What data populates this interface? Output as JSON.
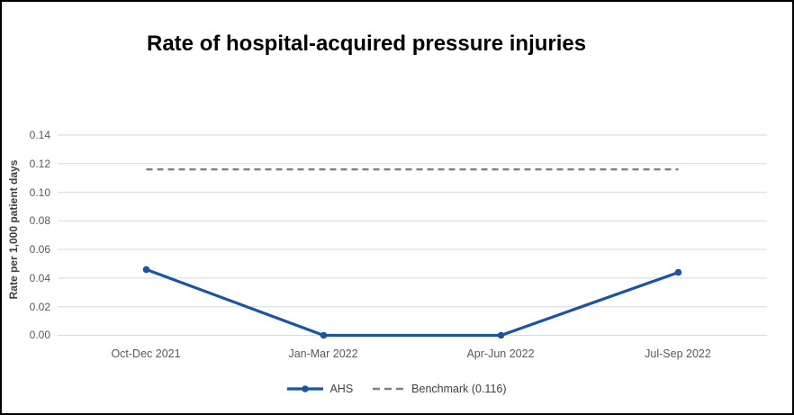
{
  "frame": {
    "background": "#ffffff",
    "border_color": "#000000"
  },
  "chart_data": {
    "type": "line",
    "title": "Rate of hospital-acquired pressure injuries",
    "xlabel": "",
    "ylabel": "Rate per 1,000 patient days",
    "categories": [
      "Oct-Dec 2021",
      "Jan-Mar 2022",
      "Apr-Jun 2022",
      "Jul-Sep 2022"
    ],
    "series": [
      {
        "name": "AHS",
        "values": [
          0.046,
          0.0,
          0.0,
          0.044
        ],
        "color": "#1C54A0",
        "style": "solid",
        "marker": "circle"
      },
      {
        "name": "Benchmark (0.116)",
        "values": [
          0.116,
          0.116,
          0.116,
          0.116
        ],
        "color": "#808080",
        "style": "dashed",
        "marker": "none"
      }
    ],
    "ylim": [
      0,
      0.14
    ],
    "yticks": [
      0.0,
      0.02,
      0.04,
      0.06,
      0.08,
      0.1,
      0.12,
      0.14
    ],
    "ytick_labels": [
      "0.00",
      "0.02",
      "0.04",
      "0.06",
      "0.08",
      "0.10",
      "0.12",
      "0.14"
    ],
    "grid": "horizontal",
    "gridline_color": "#D9D9D9",
    "axis_text_color": "#595959",
    "title_color": "#000000",
    "legend_position": "bottom"
  }
}
